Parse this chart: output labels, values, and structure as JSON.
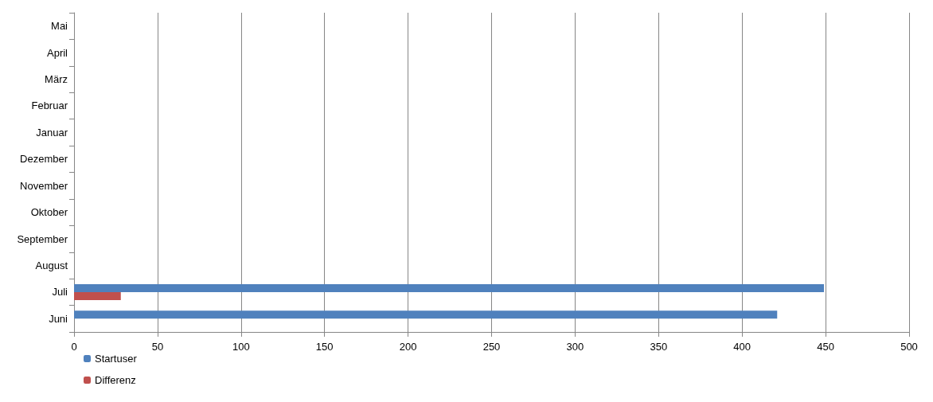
{
  "chart_data": {
    "type": "bar",
    "orientation": "horizontal",
    "categories": [
      "Mai",
      "April",
      "März",
      "Februar",
      "Januar",
      "Dezember",
      "November",
      "Oktober",
      "September",
      "August",
      "Juli",
      "Juni"
    ],
    "series": [
      {
        "name": "Startuser",
        "color": "#4f81bd",
        "values": [
          null,
          null,
          null,
          null,
          null,
          null,
          null,
          null,
          null,
          null,
          449,
          421
        ]
      },
      {
        "name": "Differenz",
        "color": "#c0504d",
        "values": [
          null,
          null,
          null,
          null,
          null,
          null,
          null,
          null,
          null,
          null,
          28,
          null
        ]
      }
    ],
    "xlim": [
      0,
      500
    ],
    "xticks": [
      0,
      50,
      100,
      150,
      200,
      250,
      300,
      350,
      400,
      450,
      500
    ],
    "grid": "x",
    "legend": "bottom left"
  }
}
